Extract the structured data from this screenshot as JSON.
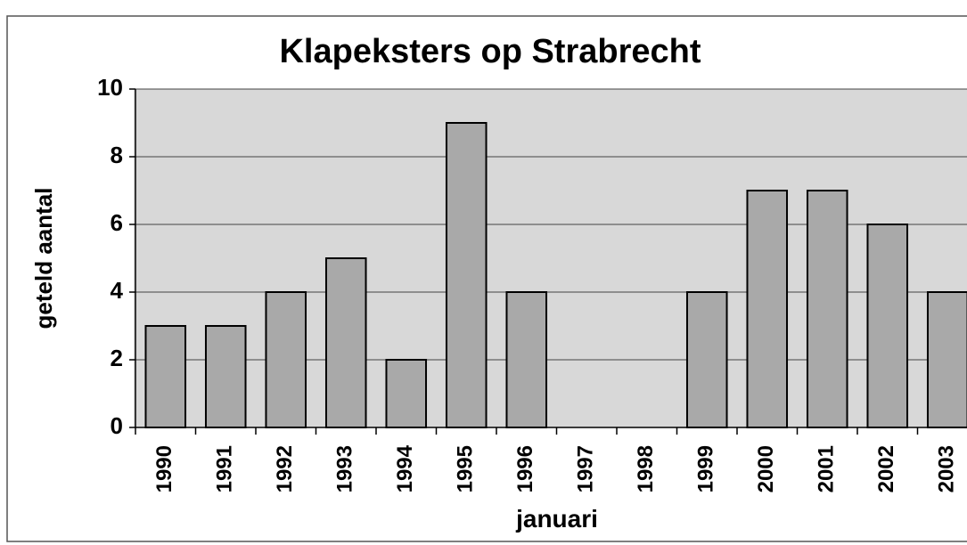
{
  "chart_data": {
    "type": "bar",
    "title": "Klapeksters op Strabrecht",
    "x_label": "januari",
    "y_label": "geteld aantal",
    "categories": [
      "1990",
      "1991",
      "1992",
      "1993",
      "1994",
      "1995",
      "1996",
      "1997",
      "1998",
      "1999",
      "2000",
      "2001",
      "2002",
      "2003"
    ],
    "values": [
      3,
      3,
      4,
      5,
      2,
      9,
      4,
      null,
      null,
      4,
      7,
      7,
      6,
      4
    ],
    "color": "#a9a9a9",
    "ylim": [
      0,
      10
    ],
    "yticks": [
      0,
      2,
      4,
      6,
      8,
      10
    ],
    "grid": true
  }
}
